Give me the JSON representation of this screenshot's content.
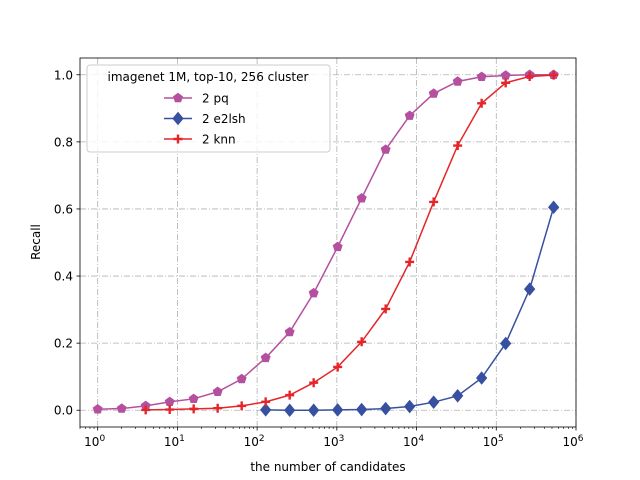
{
  "chart_data": {
    "type": "line",
    "xscale": "log",
    "xlim": [
      0.6,
      1000000
    ],
    "ylim": [
      -0.05,
      1.05
    ],
    "xlabel": "the number of candidates",
    "ylabel": "Recall",
    "grid": true,
    "legend_title": "imagenet 1M, top-10, 256 cluster",
    "legend_position": "top-left",
    "x_ticks": [
      {
        "value": 1,
        "base": "10",
        "exp": "0"
      },
      {
        "value": 10,
        "base": "10",
        "exp": "1"
      },
      {
        "value": 100,
        "base": "10",
        "exp": "2"
      },
      {
        "value": 1000,
        "base": "10",
        "exp": "3"
      },
      {
        "value": 10000,
        "base": "10",
        "exp": "4"
      },
      {
        "value": 100000,
        "base": "10",
        "exp": "5"
      },
      {
        "value": 1000000,
        "base": "10",
        "exp": "6"
      }
    ],
    "y_ticks": [
      {
        "value": 0.0,
        "label": "0.0"
      },
      {
        "value": 0.2,
        "label": "0.2"
      },
      {
        "value": 0.4,
        "label": "0.4"
      },
      {
        "value": 0.6,
        "label": "0.6"
      },
      {
        "value": 0.8,
        "label": "0.8"
      },
      {
        "value": 1.0,
        "label": "1.0"
      }
    ],
    "series": [
      {
        "name": "2 pq",
        "color": "#b5509e",
        "marker": "pentagon",
        "points": [
          [
            1,
            0.003
          ],
          [
            2,
            0.005
          ],
          [
            4,
            0.013
          ],
          [
            8,
            0.025
          ],
          [
            16,
            0.034
          ],
          [
            32,
            0.055
          ],
          [
            64,
            0.093
          ],
          [
            128,
            0.156
          ],
          [
            256,
            0.233
          ],
          [
            512,
            0.349
          ],
          [
            1024,
            0.487
          ],
          [
            2048,
            0.632
          ],
          [
            4096,
            0.777
          ],
          [
            8192,
            0.878
          ],
          [
            16384,
            0.944
          ],
          [
            32768,
            0.98
          ],
          [
            65536,
            0.994
          ],
          [
            131072,
            0.998
          ],
          [
            262144,
            1.0
          ],
          [
            524288,
            1.0
          ]
        ]
      },
      {
        "name": "2 e2lsh",
        "color": "#3850a0",
        "marker": "diamond",
        "points": [
          [
            128,
            0.001
          ],
          [
            256,
            0.0
          ],
          [
            512,
            0.0
          ],
          [
            1024,
            0.001
          ],
          [
            2048,
            0.002
          ],
          [
            4096,
            0.005
          ],
          [
            8192,
            0.011
          ],
          [
            16384,
            0.024
          ],
          [
            32768,
            0.043
          ],
          [
            65536,
            0.096
          ],
          [
            131072,
            0.199
          ],
          [
            262144,
            0.361
          ],
          [
            524288,
            0.605
          ]
        ]
      },
      {
        "name": "2 knn",
        "color": "#e4262a",
        "marker": "plus",
        "points": [
          [
            4,
            0.001
          ],
          [
            8,
            0.002
          ],
          [
            16,
            0.004
          ],
          [
            32,
            0.006
          ],
          [
            64,
            0.013
          ],
          [
            128,
            0.025
          ],
          [
            256,
            0.045
          ],
          [
            512,
            0.082
          ],
          [
            1024,
            0.129
          ],
          [
            2048,
            0.204
          ],
          [
            4096,
            0.302
          ],
          [
            8192,
            0.442
          ],
          [
            16384,
            0.621
          ],
          [
            32768,
            0.789
          ],
          [
            65536,
            0.915
          ],
          [
            131072,
            0.976
          ],
          [
            262144,
            0.995
          ],
          [
            524288,
            0.999
          ]
        ]
      }
    ]
  }
}
